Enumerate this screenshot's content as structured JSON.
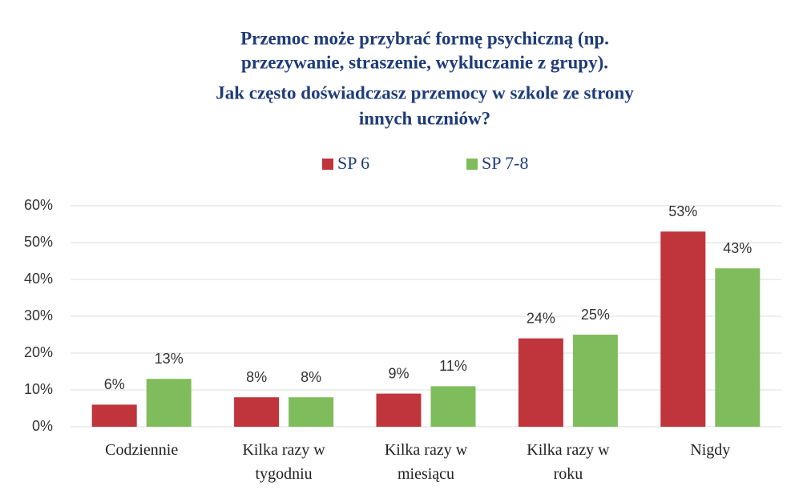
{
  "chart_data": {
    "type": "bar",
    "title": [
      "Przemoc może przybrać formę psychiczną (np.",
      "przezywanie, straszenie, wykluczanie z grupy).",
      "Jak często doświadczasz przemocy w szkole ze strony",
      "innych uczniów?"
    ],
    "categories": [
      "Codziennie",
      "Kilka razy w tygodniu",
      "Kilka razy w miesiącu",
      "Kilka razy w roku",
      "Nigdy"
    ],
    "series": [
      {
        "name": "SP 6",
        "color": "#c0343c",
        "values": [
          6,
          8,
          9,
          24,
          53
        ],
        "value_labels": [
          "6%",
          "8%",
          "9%",
          "24%",
          "53%"
        ]
      },
      {
        "name": "SP 7-8",
        "color": "#7fbd5c",
        "values": [
          13,
          8,
          11,
          25,
          43
        ],
        "value_labels": [
          "13%",
          "8%",
          "11%",
          "25%",
          "43%"
        ]
      }
    ],
    "ylim": [
      0,
      60
    ],
    "yticks": [
      {
        "value": 0,
        "label": "0%"
      },
      {
        "value": 10,
        "label": "10%"
      },
      {
        "value": 20,
        "label": "20%"
      },
      {
        "value": 30,
        "label": "30%"
      },
      {
        "value": 40,
        "label": "40%"
      },
      {
        "value": 50,
        "label": "50%"
      },
      {
        "value": 60,
        "label": "60%"
      }
    ],
    "grid": true,
    "legend": "top"
  }
}
